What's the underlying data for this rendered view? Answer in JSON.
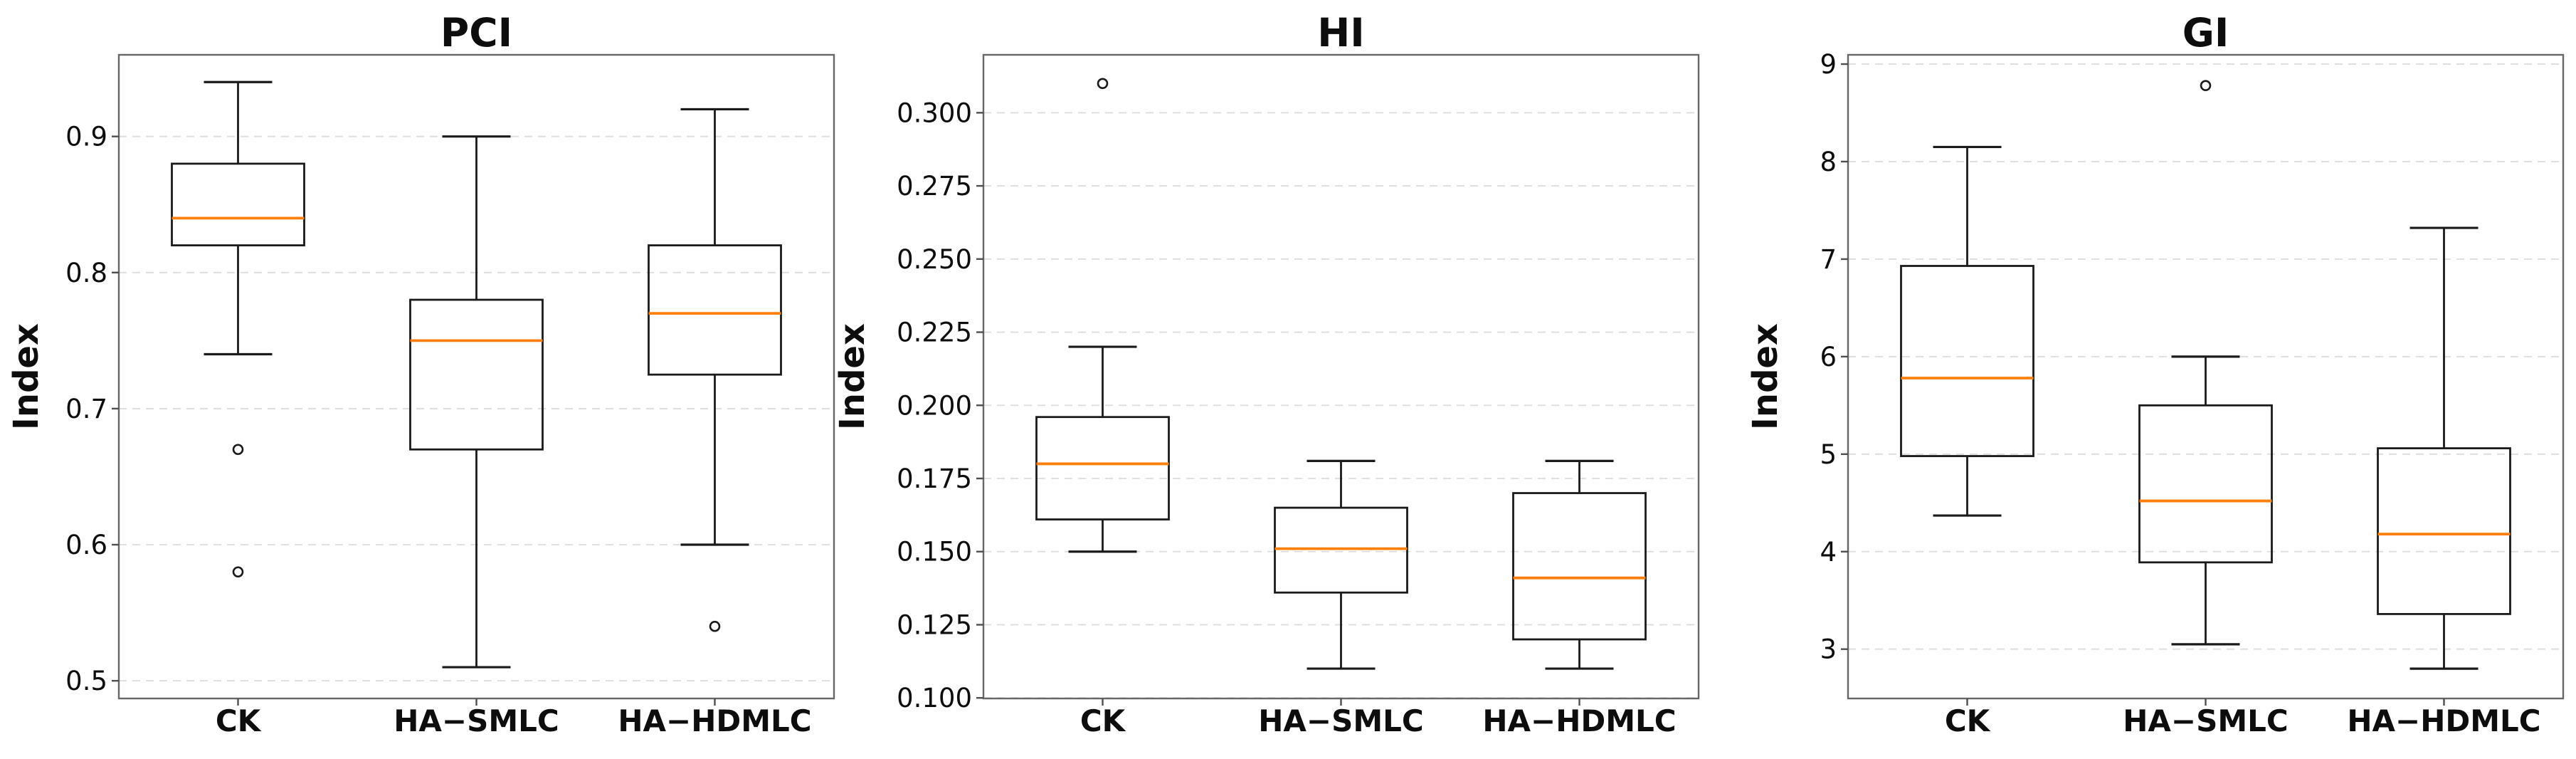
{
  "figure": {
    "background": "#ffffff",
    "kind": "boxplot-figure"
  },
  "style": {
    "text_color": "#0d0d0d",
    "box_stroke_color": "#1a1a1a",
    "median_color": "#ff7f0e",
    "grid_color": "#dcdcdc",
    "spine_color": "#676767",
    "tick_color": "#4f4f4f",
    "outlier_stroke_color": "#1a1a1a"
  },
  "chart_data": [
    {
      "type": "box",
      "title": "PCI",
      "ylabel": "Index",
      "xlabel": "",
      "grid": true,
      "legend_position": "none",
      "categories": [
        "CK",
        "HA−SMLC",
        "HA−HDMLC"
      ],
      "ylim": [
        0.487,
        0.96
      ],
      "yticks": [
        0.9,
        0.8,
        0.7,
        0.6,
        0.5
      ],
      "ytick_decimals": 1,
      "boxes": [
        {
          "category": "CK",
          "whisker_low": 0.74,
          "q1": 0.82,
          "median": 0.84,
          "q3": 0.88,
          "whisker_high": 0.94,
          "outliers": [
            0.67,
            0.58
          ]
        },
        {
          "category": "HA−SMLC",
          "whisker_low": 0.51,
          "q1": 0.67,
          "median": 0.75,
          "q3": 0.78,
          "whisker_high": 0.9,
          "outliers": []
        },
        {
          "category": "HA−HDMLC",
          "whisker_low": 0.6,
          "q1": 0.725,
          "median": 0.77,
          "q3": 0.82,
          "whisker_high": 0.92,
          "outliers": [
            0.54
          ]
        }
      ]
    },
    {
      "type": "box",
      "title": "HI",
      "ylabel": "Index",
      "xlabel": "",
      "grid": true,
      "legend_position": "none",
      "categories": [
        "CK",
        "HA−SMLC",
        "HA−HDMLC"
      ],
      "ylim": [
        0.0998,
        0.3198
      ],
      "yticks": [
        0.3,
        0.275,
        0.25,
        0.225,
        0.2,
        0.175,
        0.15,
        0.125,
        0.1
      ],
      "ytick_decimals": 3,
      "boxes": [
        {
          "category": "CK",
          "whisker_low": 0.15,
          "q1": 0.161,
          "median": 0.18,
          "q3": 0.196,
          "whisker_high": 0.22,
          "outliers": [
            0.31
          ]
        },
        {
          "category": "HA−SMLC",
          "whisker_low": 0.11,
          "q1": 0.136,
          "median": 0.151,
          "q3": 0.165,
          "whisker_high": 0.181,
          "outliers": []
        },
        {
          "category": "HA−HDMLC",
          "whisker_low": 0.11,
          "q1": 0.12,
          "median": 0.141,
          "q3": 0.17,
          "whisker_high": 0.181,
          "outliers": []
        }
      ]
    },
    {
      "type": "box",
      "title": "GI",
      "ylabel": "Index",
      "xlabel": "",
      "grid": true,
      "legend_position": "none",
      "categories": [
        "CK",
        "HA−SMLC",
        "HA−HDMLC"
      ],
      "ylim": [
        2.494,
        9.095
      ],
      "yticks": [
        9,
        8,
        7,
        6,
        5,
        4,
        3
      ],
      "ytick_decimals": 0,
      "boxes": [
        {
          "category": "CK",
          "whisker_low": 4.37,
          "q1": 4.98,
          "median": 5.78,
          "q3": 6.93,
          "whisker_high": 8.15,
          "outliers": []
        },
        {
          "category": "HA−SMLC",
          "whisker_low": 3.05,
          "q1": 3.89,
          "median": 4.52,
          "q3": 5.5,
          "whisker_high": 6.0,
          "outliers": [
            8.78
          ]
        },
        {
          "category": "HA−HDMLC",
          "whisker_low": 2.8,
          "q1": 3.36,
          "median": 4.18,
          "q3": 5.06,
          "whisker_high": 7.32,
          "outliers": []
        }
      ]
    }
  ]
}
